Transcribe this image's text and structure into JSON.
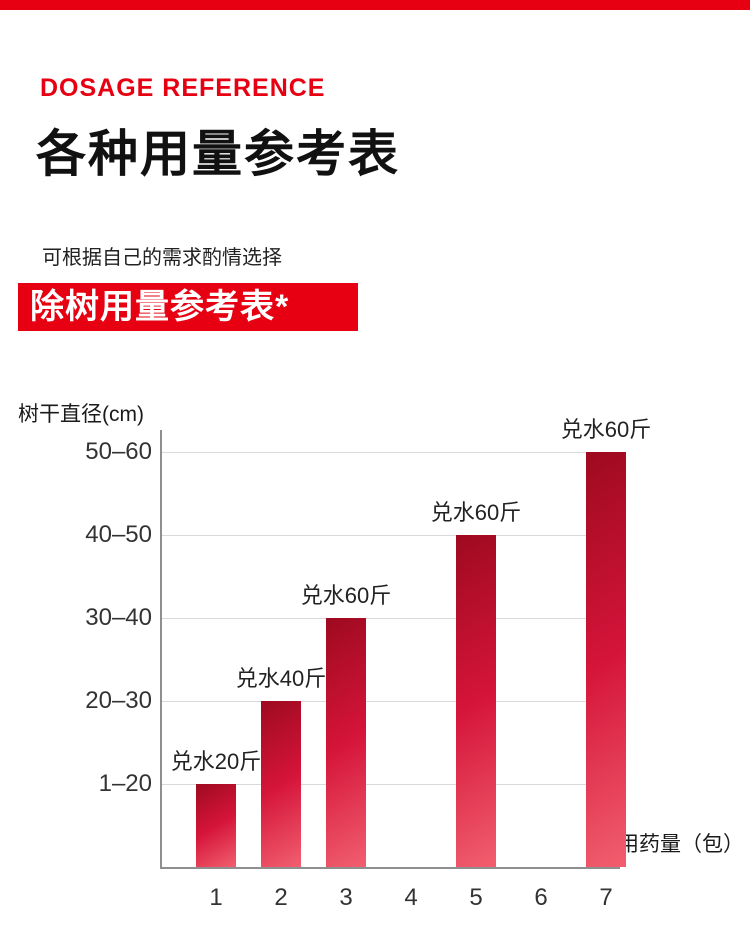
{
  "page": {
    "eyebrow": "DOSAGE REFERENCE",
    "title": "各种用量参考表",
    "subtitle": "可根据自己的需求酌情选择",
    "banner": "除树用量参考表*",
    "accent_color": "#e60012"
  },
  "chart_data": {
    "type": "bar",
    "title": "除树用量参考表",
    "xlabel": "用药量（包）",
    "ylabel": "树干直径(cm)",
    "categories": [
      "1",
      "2",
      "3",
      "4",
      "5",
      "6",
      "7"
    ],
    "y_tick_labels": [
      "1–20",
      "20–30",
      "30–40",
      "40–50",
      "50–60"
    ],
    "values": [
      1,
      2,
      3,
      0,
      4,
      0,
      5
    ],
    "bar_labels": [
      "兑水20斤",
      "兑水40斤",
      "兑水60斤",
      "",
      "兑水60斤",
      "",
      "兑水60斤"
    ],
    "points": [
      {
        "packs": "1",
        "diameter_cm": "1–20",
        "label": "兑水20斤"
      },
      {
        "packs": "2",
        "diameter_cm": "20–30",
        "label": "兑水40斤"
      },
      {
        "packs": "3",
        "diameter_cm": "30–40",
        "label": "兑水60斤"
      },
      {
        "packs": "5",
        "diameter_cm": "40–50",
        "label": "兑水60斤"
      },
      {
        "packs": "7",
        "diameter_cm": "50–60",
        "label": "兑水60斤"
      }
    ],
    "bar_color_top": "#9e0a20",
    "bar_color_bottom": "#f15f6f",
    "grid": true,
    "legend": false,
    "ylim_levels": [
      0,
      5
    ]
  }
}
